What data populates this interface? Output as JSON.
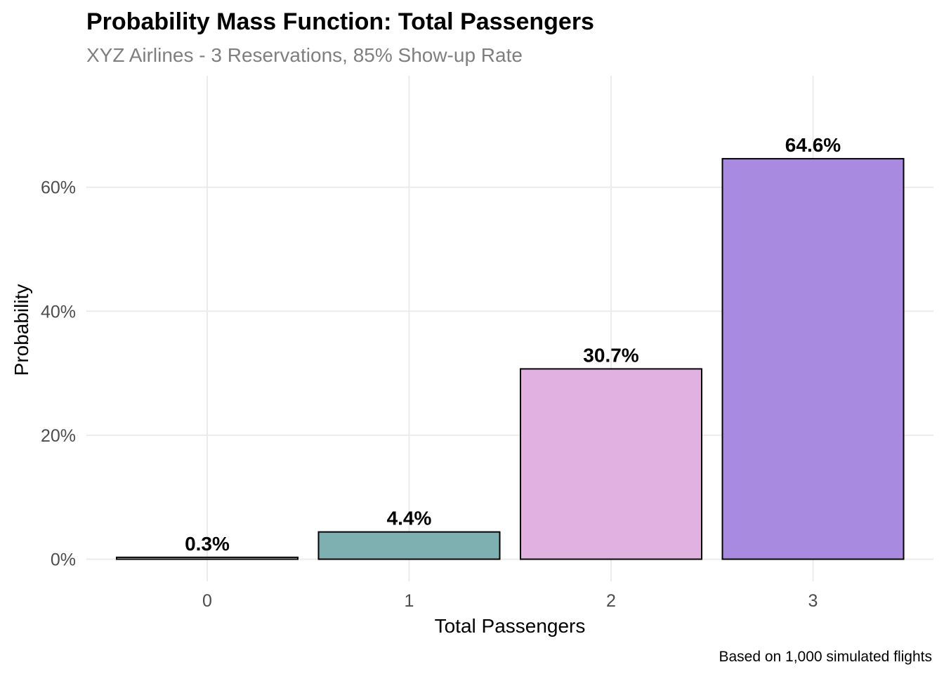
{
  "chart_data": {
    "type": "bar",
    "title": "Probability Mass Function: Total Passengers",
    "subtitle": "XYZ Airlines - 3 Reservations, 85% Show-up Rate",
    "xlabel": "Total Passengers",
    "ylabel": "Probability",
    "caption": "Based on 1,000 simulated flights",
    "categories": [
      "0",
      "1",
      "2",
      "3"
    ],
    "values": [
      0.3,
      4.4,
      30.7,
      64.6
    ],
    "data_labels": [
      "0.3%",
      "4.4%",
      "30.7%",
      "64.6%"
    ],
    "bar_colors": [
      "#ffffff",
      "#7fb0b1",
      "#e1b1e1",
      "#a88be1"
    ],
    "ylim": [
      0,
      72
    ],
    "yticks": [
      0,
      20,
      40,
      60
    ],
    "ytick_labels": [
      "0%",
      "20%",
      "40%",
      "60%"
    ],
    "grid": true,
    "legend": "none"
  }
}
